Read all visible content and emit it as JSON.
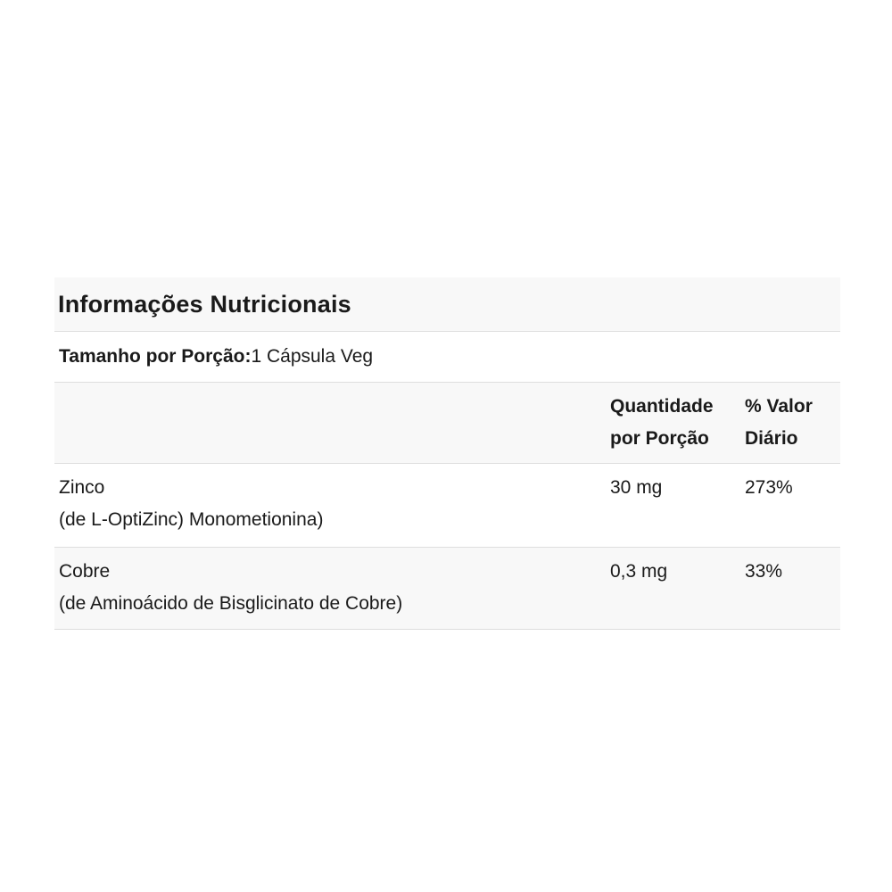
{
  "nutrition_table": {
    "title": "Informações Nutricionais",
    "serving_label": "Tamanho por Porção:",
    "serving_value": "1 Cápsula Veg",
    "col_amount_header": "Quantidade por Porção",
    "col_dv_header": "% Valor Diário",
    "rows": [
      {
        "name": "Zinco",
        "source": "(de L-OptiZinc) Monometionina)",
        "amount": "30 mg",
        "daily_value": "273%"
      },
      {
        "name": "Cobre",
        "source": "(de Aminoácido de Bisglicinato de Cobre)",
        "amount": "0,3 mg",
        "daily_value": "33%"
      }
    ],
    "colors": {
      "stripe_bg": "#f8f8f8",
      "divider": "#dedede",
      "text": "#1a1a1a"
    }
  }
}
